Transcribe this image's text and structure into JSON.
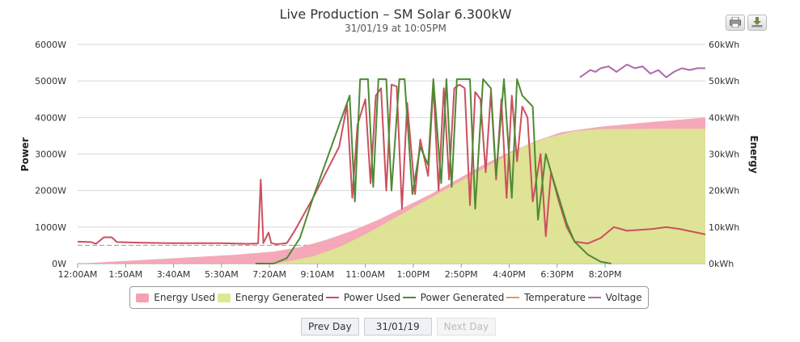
{
  "chart_data": {
    "type": "line",
    "title": "Live Production – SM Solar 6.300kW",
    "subtitle": "31/01/19 at 10:05PM",
    "y_left": {
      "label": "Power",
      "ticks": [
        "0W",
        "1000W",
        "2000W",
        "3000W",
        "4000W",
        "5000W",
        "6000W"
      ],
      "range": [
        0,
        6000
      ]
    },
    "y_right": {
      "label": "Energy",
      "ticks": [
        "0kWh",
        "10kWh",
        "20kWh",
        "30kWh",
        "40kWh",
        "50kWh",
        "60kWh"
      ],
      "range": [
        0,
        60
      ]
    },
    "x_axis": {
      "ticks": [
        "12:00AM",
        "1:50AM",
        "3:40AM",
        "5:30AM",
        "7:20AM",
        "9:10AM",
        "11:00AM",
        "1:00PM",
        "2:50PM",
        "4:40PM",
        "6:30PM",
        "8:20PM"
      ],
      "range_hours": [
        0,
        24
      ]
    },
    "grid": true,
    "legend": "bottom",
    "series": [
      {
        "name": "Energy Used",
        "type": "area",
        "axis": "right",
        "color": "#f4a0b0",
        "points": [
          [
            0,
            0
          ],
          [
            3,
            1.2
          ],
          [
            6,
            2.4
          ],
          [
            7.5,
            3.3
          ],
          [
            8.5,
            4.5
          ],
          [
            9.5,
            6.5
          ],
          [
            10.5,
            9
          ],
          [
            11.5,
            12
          ],
          [
            12.5,
            15.5
          ],
          [
            13.5,
            19
          ],
          [
            14.5,
            23
          ],
          [
            15.5,
            27
          ],
          [
            16.5,
            30.5
          ],
          [
            17.5,
            33.5
          ],
          [
            18.5,
            36
          ],
          [
            20,
            37.5
          ],
          [
            22,
            38.8
          ],
          [
            24,
            40
          ]
        ]
      },
      {
        "name": "Energy Generated",
        "type": "area",
        "axis": "right",
        "color": "#dce991",
        "points": [
          [
            0,
            0
          ],
          [
            7.3,
            0
          ],
          [
            8,
            0.5
          ],
          [
            9,
            2
          ],
          [
            10,
            4.5
          ],
          [
            11,
            8
          ],
          [
            12,
            12
          ],
          [
            13,
            16
          ],
          [
            14,
            20
          ],
          [
            15,
            24
          ],
          [
            16,
            28
          ],
          [
            17,
            32
          ],
          [
            18,
            34.5
          ],
          [
            19,
            36.3
          ],
          [
            20,
            36.8
          ],
          [
            22,
            36.9
          ],
          [
            24,
            36.9
          ]
        ]
      },
      {
        "name": "Power Used",
        "type": "line",
        "axis": "left",
        "color": "#cc4f5f",
        "points": [
          [
            0,
            600
          ],
          [
            0.5,
            590
          ],
          [
            0.7,
            540
          ],
          [
            1,
            720
          ],
          [
            1.3,
            720
          ],
          [
            1.5,
            590
          ],
          [
            2.5,
            570
          ],
          [
            3.5,
            560
          ],
          [
            4.5,
            560
          ],
          [
            5.5,
            560
          ],
          [
            6.5,
            540
          ],
          [
            6.9,
            550
          ],
          [
            7.0,
            2300
          ],
          [
            7.1,
            560
          ],
          [
            7.3,
            850
          ],
          [
            7.4,
            560
          ],
          [
            7.6,
            530
          ],
          [
            8,
            560
          ],
          [
            8.3,
            900
          ],
          [
            9,
            1800
          ],
          [
            10,
            3200
          ],
          [
            10.3,
            4350
          ],
          [
            10.5,
            1800
          ],
          [
            10.7,
            3800
          ],
          [
            11,
            4500
          ],
          [
            11.2,
            2200
          ],
          [
            11.4,
            4600
          ],
          [
            11.6,
            4800
          ],
          [
            11.8,
            2000
          ],
          [
            12,
            4900
          ],
          [
            12.2,
            4850
          ],
          [
            12.4,
            1500
          ],
          [
            12.6,
            4400
          ],
          [
            12.9,
            1900
          ],
          [
            13.1,
            3400
          ],
          [
            13.4,
            2400
          ],
          [
            13.6,
            4900
          ],
          [
            13.8,
            2000
          ],
          [
            14,
            4800
          ],
          [
            14.2,
            2300
          ],
          [
            14.4,
            4800
          ],
          [
            14.6,
            4900
          ],
          [
            14.8,
            4800
          ],
          [
            15,
            1600
          ],
          [
            15.2,
            4700
          ],
          [
            15.4,
            4500
          ],
          [
            15.6,
            2500
          ],
          [
            15.8,
            4700
          ],
          [
            16,
            2300
          ],
          [
            16.2,
            4500
          ],
          [
            16.4,
            1800
          ],
          [
            16.6,
            4600
          ],
          [
            16.8,
            2800
          ],
          [
            17.0,
            4300
          ],
          [
            17.2,
            4000
          ],
          [
            17.4,
            1700
          ],
          [
            17.7,
            3000
          ],
          [
            17.9,
            750
          ],
          [
            18.1,
            2500
          ],
          [
            18.4,
            1700
          ],
          [
            18.7,
            1000
          ],
          [
            19,
            600
          ],
          [
            19.5,
            550
          ],
          [
            20,
            700
          ],
          [
            20.5,
            1000
          ],
          [
            21,
            900
          ],
          [
            22,
            950
          ],
          [
            22.5,
            1000
          ],
          [
            23,
            950
          ],
          [
            24,
            800
          ]
        ]
      },
      {
        "name": "Power Generated",
        "type": "line",
        "axis": "left",
        "color": "#4e8a35",
        "points": [
          [
            6.8,
            0
          ],
          [
            7.5,
            0
          ],
          [
            8,
            150
          ],
          [
            8.5,
            700
          ],
          [
            9,
            1800
          ],
          [
            9.5,
            2800
          ],
          [
            10,
            3800
          ],
          [
            10.4,
            4600
          ],
          [
            10.6,
            1700
          ],
          [
            10.8,
            5050
          ],
          [
            11.1,
            5050
          ],
          [
            11.3,
            2100
          ],
          [
            11.5,
            5050
          ],
          [
            11.8,
            5050
          ],
          [
            12,
            2000
          ],
          [
            12.3,
            5050
          ],
          [
            12.5,
            5050
          ],
          [
            12.8,
            1900
          ],
          [
            13.1,
            3200
          ],
          [
            13.4,
            2700
          ],
          [
            13.6,
            5050
          ],
          [
            13.9,
            2200
          ],
          [
            14.1,
            5050
          ],
          [
            14.3,
            2100
          ],
          [
            14.5,
            5050
          ],
          [
            15,
            5050
          ],
          [
            15.2,
            1500
          ],
          [
            15.5,
            5050
          ],
          [
            15.8,
            4800
          ],
          [
            16,
            2400
          ],
          [
            16.3,
            5050
          ],
          [
            16.6,
            1800
          ],
          [
            16.8,
            5050
          ],
          [
            17,
            4600
          ],
          [
            17.4,
            4300
          ],
          [
            17.6,
            1200
          ],
          [
            17.9,
            3000
          ],
          [
            18.1,
            2500
          ],
          [
            18.4,
            1800
          ],
          [
            18.7,
            1100
          ],
          [
            19,
            600
          ],
          [
            19.5,
            250
          ],
          [
            20,
            50
          ],
          [
            20.4,
            0
          ]
        ]
      },
      {
        "name": "Temperature",
        "type": "line",
        "axis": "left",
        "color": "#e39a5a",
        "points": []
      },
      {
        "name": "Voltage",
        "type": "line",
        "axis": "left",
        "color": "#b06aa8",
        "points": [
          [
            19.2,
            5100
          ],
          [
            19.4,
            5200
          ],
          [
            19.6,
            5300
          ],
          [
            19.8,
            5250
          ],
          [
            20,
            5350
          ],
          [
            20.3,
            5400
          ],
          [
            20.6,
            5250
          ],
          [
            21,
            5450
          ],
          [
            21.3,
            5350
          ],
          [
            21.6,
            5400
          ],
          [
            21.9,
            5200
          ],
          [
            22.2,
            5300
          ],
          [
            22.5,
            5100
          ],
          [
            22.8,
            5250
          ],
          [
            23.1,
            5350
          ],
          [
            23.4,
            5300
          ],
          [
            23.7,
            5350
          ],
          [
            24,
            5350
          ]
        ]
      }
    ]
  },
  "legend": {
    "items": [
      {
        "label": "Energy Used",
        "color": "#f4a0b0",
        "kind": "area"
      },
      {
        "label": "Energy Generated",
        "color": "#dce991",
        "kind": "area"
      },
      {
        "label": "Power Used",
        "color": "#cc4f5f",
        "kind": "line"
      },
      {
        "label": "Power Generated",
        "color": "#4e8a35",
        "kind": "line"
      },
      {
        "label": "Temperature",
        "color": "#e39a5a",
        "kind": "line"
      },
      {
        "label": "Voltage",
        "color": "#b06aa8",
        "kind": "line"
      }
    ]
  },
  "toolbar": {
    "print_icon": "printer-icon",
    "download_icon": "download-icon"
  },
  "nav": {
    "prev_label": "Prev Day",
    "date_label": "31/01/19",
    "next_label": "Next Day"
  }
}
